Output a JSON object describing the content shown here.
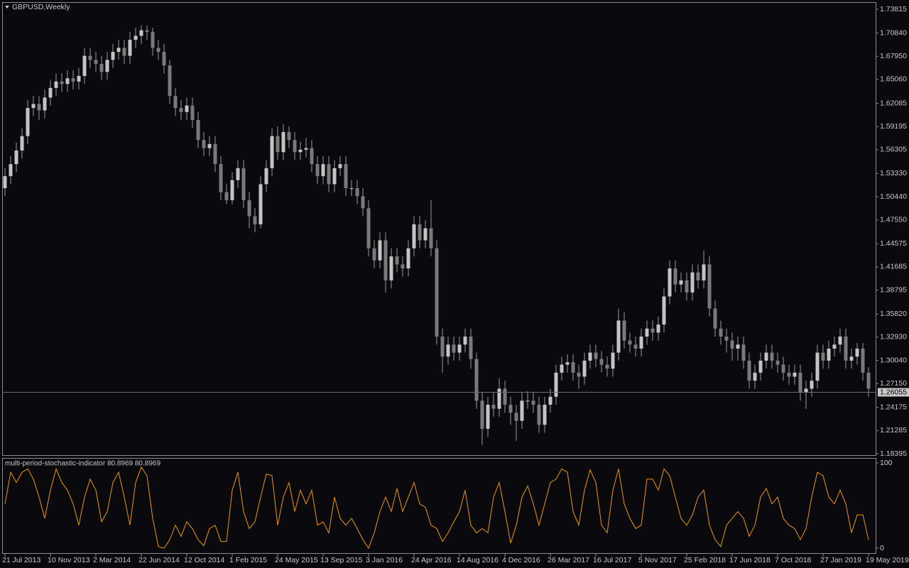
{
  "chart_data": [
    {
      "type": "candlestick",
      "title": "GBPUSD,Weekly",
      "up_color": "#c4c4c4",
      "down_color": "#7a7a7a",
      "wick_color": "#9a9a9a",
      "xlim": [
        -0.5,
        153.25
      ],
      "ylim": [
        1.1822,
        1.747
      ],
      "yticks": [
        1.73815,
        {
          "value": 1.7084,
          "label": "1.70840"
        },
        {
          "value": 1.6795,
          "label": "1.67950"
        },
        {
          "value": 1.6506,
          "label": "1.65060"
        },
        1.62085,
        1.59195,
        1.56305,
        {
          "value": 1.5333,
          "label": "1.53330"
        },
        {
          "value": 1.5044,
          "label": "1.50440"
        },
        {
          "value": 1.4755,
          "label": "1.47550"
        },
        1.44575,
        1.41685,
        1.38795,
        {
          "value": 1.3582,
          "label": "1.35820"
        },
        {
          "value": 1.3293,
          "label": "1.32930"
        },
        {
          "value": 1.3004,
          "label": "1.30040"
        },
        {
          "value": 1.2715,
          "label": "1.27150"
        },
        1.24175,
        1.21285,
        1.18395
      ],
      "current_price": 1.26055,
      "grid": false,
      "open": [
        1.515,
        1.53,
        1.545,
        1.562,
        1.58,
        1.615,
        1.62,
        1.612,
        1.628,
        1.64,
        1.648,
        1.645,
        1.652,
        1.648,
        1.655,
        1.68,
        1.675,
        1.67,
        1.66,
        1.675,
        1.685,
        1.69,
        1.68,
        1.7,
        1.705,
        1.712,
        1.71,
        1.69,
        1.685,
        1.668,
        1.63,
        1.615,
        1.61,
        1.618,
        1.6,
        1.575,
        1.565,
        1.57,
        1.545,
        1.51,
        1.5,
        1.525,
        1.54,
        1.5,
        1.48,
        1.47,
        1.52,
        1.54,
        1.58,
        1.56,
        1.585,
        1.575,
        1.56,
        1.563,
        1.565,
        1.545,
        1.53,
        1.545,
        1.52,
        1.54,
        1.545,
        1.515,
        1.515,
        1.505,
        1.49,
        1.44,
        1.425,
        1.45,
        1.4,
        1.43,
        1.42,
        1.415,
        1.44,
        1.47,
        1.45,
        1.465,
        1.44,
        1.33,
        1.305,
        1.32,
        1.31,
        1.32,
        1.33,
        1.302,
        1.25,
        1.215,
        1.245,
        1.24,
        1.265,
        1.245,
        1.235,
        1.225,
        1.25,
        1.25,
        1.245,
        1.22,
        1.245,
        1.255,
        1.285,
        1.295,
        1.298,
        1.285,
        1.28,
        1.3,
        1.31,
        1.302,
        1.295,
        1.29,
        1.31,
        1.35,
        1.325,
        1.32,
        1.315,
        1.33,
        1.34,
        1.335,
        1.345,
        1.38,
        1.415,
        1.395,
        1.4,
        1.385,
        1.41,
        1.4,
        1.42,
        1.365,
        1.34,
        1.33,
        1.325,
        1.315,
        1.32,
        1.3,
        1.275,
        1.285,
        1.3,
        1.31,
        1.3,
        1.295,
        1.285,
        1.28,
        1.285,
        1.26,
        1.265,
        1.275,
        1.31,
        1.3,
        1.315,
        1.32,
        1.33,
        1.3,
        1.305,
        1.315,
        1.285
      ],
      "high": [
        1.54,
        1.555,
        1.572,
        1.59,
        1.625,
        1.63,
        1.63,
        1.638,
        1.65,
        1.658,
        1.658,
        1.662,
        1.662,
        1.665,
        1.69,
        1.69,
        1.685,
        1.68,
        1.685,
        1.695,
        1.7,
        1.7,
        1.71,
        1.715,
        1.718,
        1.718,
        1.715,
        1.7,
        1.695,
        1.675,
        1.64,
        1.625,
        1.628,
        1.628,
        1.61,
        1.585,
        1.58,
        1.58,
        1.555,
        1.52,
        1.535,
        1.55,
        1.55,
        1.51,
        1.49,
        1.53,
        1.55,
        1.59,
        1.592,
        1.595,
        1.592,
        1.585,
        1.573,
        1.578,
        1.575,
        1.555,
        1.555,
        1.555,
        1.55,
        1.555,
        1.555,
        1.525,
        1.525,
        1.515,
        1.5,
        1.45,
        1.46,
        1.46,
        1.44,
        1.44,
        1.43,
        1.45,
        1.48,
        1.48,
        1.475,
        1.5,
        1.45,
        1.34,
        1.33,
        1.33,
        1.33,
        1.34,
        1.34,
        1.31,
        1.26,
        1.255,
        1.26,
        1.278,
        1.275,
        1.255,
        1.245,
        1.26,
        1.262,
        1.26,
        1.255,
        1.255,
        1.265,
        1.295,
        1.305,
        1.308,
        1.308,
        1.295,
        1.31,
        1.32,
        1.32,
        1.312,
        1.305,
        1.32,
        1.365,
        1.36,
        1.335,
        1.33,
        1.34,
        1.35,
        1.35,
        1.355,
        1.39,
        1.425,
        1.425,
        1.41,
        1.41,
        1.42,
        1.42,
        1.437,
        1.43,
        1.375,
        1.35,
        1.34,
        1.335,
        1.33,
        1.33,
        1.31,
        1.295,
        1.31,
        1.32,
        1.32,
        1.31,
        1.305,
        1.295,
        1.295,
        1.295,
        1.275,
        1.285,
        1.32,
        1.32,
        1.325,
        1.33,
        1.34,
        1.34,
        1.315,
        1.322,
        1.322,
        1.292
      ],
      "low": [
        1.505,
        1.52,
        1.535,
        1.552,
        1.57,
        1.605,
        1.6,
        1.602,
        1.618,
        1.63,
        1.635,
        1.635,
        1.638,
        1.638,
        1.645,
        1.665,
        1.66,
        1.65,
        1.65,
        1.665,
        1.675,
        1.67,
        1.67,
        1.69,
        1.695,
        1.7,
        1.68,
        1.675,
        1.658,
        1.62,
        1.605,
        1.6,
        1.6,
        1.59,
        1.565,
        1.555,
        1.555,
        1.535,
        1.5,
        1.495,
        1.495,
        1.515,
        1.49,
        1.465,
        1.46,
        1.465,
        1.51,
        1.53,
        1.55,
        1.55,
        1.565,
        1.55,
        1.55,
        1.553,
        1.535,
        1.52,
        1.52,
        1.51,
        1.51,
        1.53,
        1.505,
        1.505,
        1.495,
        1.48,
        1.43,
        1.415,
        1.415,
        1.385,
        1.39,
        1.41,
        1.405,
        1.405,
        1.43,
        1.44,
        1.44,
        1.43,
        1.32,
        1.285,
        1.295,
        1.3,
        1.3,
        1.31,
        1.29,
        1.24,
        1.195,
        1.205,
        1.23,
        1.23,
        1.235,
        1.22,
        1.2,
        1.215,
        1.24,
        1.235,
        1.21,
        1.21,
        1.235,
        1.245,
        1.275,
        1.285,
        1.275,
        1.265,
        1.27,
        1.29,
        1.292,
        1.285,
        1.28,
        1.28,
        1.3,
        1.315,
        1.31,
        1.305,
        1.305,
        1.32,
        1.325,
        1.325,
        1.335,
        1.37,
        1.385,
        1.385,
        1.375,
        1.375,
        1.39,
        1.39,
        1.355,
        1.33,
        1.32,
        1.31,
        1.3,
        1.3,
        1.29,
        1.265,
        1.265,
        1.275,
        1.29,
        1.29,
        1.285,
        1.275,
        1.27,
        1.27,
        1.25,
        1.24,
        1.255,
        1.265,
        1.29,
        1.29,
        1.305,
        1.31,
        1.29,
        1.29,
        1.295,
        1.275,
        1.255
      ],
      "close": [
        1.53,
        1.545,
        1.562,
        1.58,
        1.615,
        1.62,
        1.612,
        1.628,
        1.64,
        1.648,
        1.645,
        1.652,
        1.648,
        1.655,
        1.68,
        1.675,
        1.67,
        1.66,
        1.675,
        1.685,
        1.69,
        1.68,
        1.7,
        1.705,
        1.712,
        1.71,
        1.69,
        1.685,
        1.668,
        1.63,
        1.615,
        1.61,
        1.618,
        1.6,
        1.575,
        1.565,
        1.57,
        1.545,
        1.51,
        1.5,
        1.525,
        1.54,
        1.5,
        1.48,
        1.47,
        1.52,
        1.54,
        1.58,
        1.56,
        1.585,
        1.575,
        1.56,
        1.563,
        1.565,
        1.545,
        1.53,
        1.545,
        1.52,
        1.54,
        1.545,
        1.515,
        1.515,
        1.505,
        1.49,
        1.44,
        1.425,
        1.45,
        1.4,
        1.43,
        1.42,
        1.415,
        1.44,
        1.47,
        1.45,
        1.465,
        1.44,
        1.33,
        1.305,
        1.32,
        1.31,
        1.32,
        1.33,
        1.302,
        1.25,
        1.215,
        1.245,
        1.24,
        1.265,
        1.245,
        1.235,
        1.225,
        1.25,
        1.25,
        1.245,
        1.22,
        1.245,
        1.255,
        1.285,
        1.295,
        1.298,
        1.285,
        1.28,
        1.3,
        1.31,
        1.302,
        1.295,
        1.29,
        1.31,
        1.35,
        1.325,
        1.32,
        1.315,
        1.33,
        1.34,
        1.335,
        1.345,
        1.38,
        1.415,
        1.395,
        1.4,
        1.385,
        1.41,
        1.4,
        1.42,
        1.365,
        1.34,
        1.33,
        1.325,
        1.315,
        1.32,
        1.3,
        1.275,
        1.285,
        1.3,
        1.31,
        1.3,
        1.295,
        1.285,
        1.28,
        1.285,
        1.26,
        1.265,
        1.275,
        1.31,
        1.3,
        1.315,
        1.32,
        1.33,
        1.3,
        1.305,
        1.315,
        1.285,
        1.265
      ]
    },
    {
      "type": "line",
      "title": "multi-period-stochastic-indicator 80.8969 80.8969",
      "color": "#f0960a",
      "xlim": [
        -0.5,
        153.25
      ],
      "ylim": [
        -6.5,
        105.8
      ],
      "yticks": [
        100,
        0
      ],
      "xticks": [
        {
          "value": 0,
          "label": "21 Jul 2013"
        },
        {
          "value": 8,
          "label": "10 Nov 2013"
        },
        {
          "value": 16,
          "label": "2 Mar 2014"
        },
        {
          "value": 24,
          "label": "22 Jun 2014"
        },
        {
          "value": 32,
          "label": "12 Oct 2014"
        },
        {
          "value": 40,
          "label": "1 Feb 2015"
        },
        {
          "value": 48,
          "label": "24 May 2015"
        },
        {
          "value": 56,
          "label": "13 Sep 2015"
        },
        {
          "value": 64,
          "label": "3 Jan 2016"
        },
        {
          "value": 72,
          "label": "24 Apr 2016"
        },
        {
          "value": 80,
          "label": "14 Aug 2016"
        },
        {
          "value": 88,
          "label": "4 Dec 2016"
        },
        {
          "value": 96,
          "label": "26 Mar 2017"
        },
        {
          "value": 104,
          "label": "16 Jul 2017"
        },
        {
          "value": 112,
          "label": "5 Nov 2017"
        },
        {
          "value": 120,
          "label": "25 Feb 2018"
        },
        {
          "value": 128,
          "label": "17 Jun 2018"
        },
        {
          "value": 136,
          "label": "7 Oct 2018"
        },
        {
          "value": 144,
          "label": "27 Jan 2019"
        },
        {
          "value": 152,
          "label": "19 May 2019"
        }
      ],
      "values": [
        52,
        89,
        77,
        89,
        93,
        81,
        60,
        35,
        68,
        93,
        77,
        68,
        52,
        27,
        60,
        81,
        68,
        31,
        43,
        77,
        89,
        60,
        27,
        77,
        95,
        85,
        35,
        2,
        0,
        10,
        27,
        14,
        31,
        23,
        10,
        3,
        23,
        27,
        8,
        8,
        68,
        89,
        43,
        23,
        31,
        60,
        87,
        85,
        27,
        60,
        77,
        43,
        68,
        52,
        68,
        27,
        31,
        18,
        60,
        35,
        27,
        35,
        23,
        10,
        0,
        18,
        43,
        60,
        43,
        70,
        43,
        60,
        77,
        52,
        48,
        27,
        23,
        8,
        18,
        31,
        43,
        68,
        27,
        18,
        23,
        18,
        60,
        77,
        43,
        6,
        27,
        60,
        73,
        52,
        27,
        52,
        77,
        81,
        93,
        89,
        43,
        27,
        68,
        92,
        77,
        27,
        18,
        68,
        93,
        52,
        35,
        23,
        27,
        81,
        81,
        68,
        93,
        85,
        60,
        35,
        27,
        39,
        60,
        68,
        27,
        10,
        2,
        27,
        35,
        43,
        35,
        14,
        27,
        60,
        70,
        52,
        60,
        35,
        27,
        23,
        10,
        23,
        60,
        89,
        85,
        60,
        52,
        68,
        52,
        18,
        39,
        39,
        10
      ]
    }
  ]
}
